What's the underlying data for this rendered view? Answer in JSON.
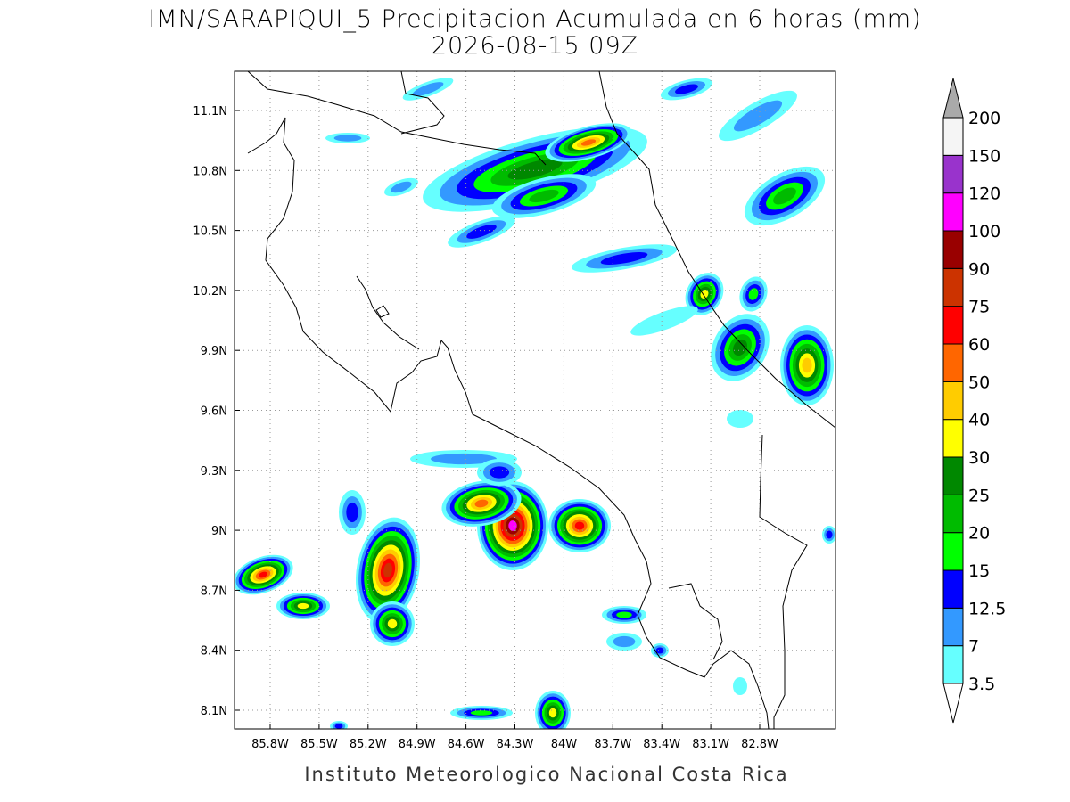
{
  "title": "IMN/SARAPIQUI_5 Precipitacion Acumulada en 6 horas (mm)",
  "subtitle": "2026-08-15 09Z",
  "lat_labels": [
    "11.1N",
    "10.8N",
    "10.5N",
    "10.2N",
    "9.9N",
    "9.6N",
    "9.3N",
    "9N",
    "8.7N",
    "8.4N",
    "8.1N"
  ],
  "lon_labels": [
    "85.8W",
    "85.5W",
    "85.2W",
    "84.9W",
    "84.6W",
    "84.3W",
    "84W",
    "83.7W",
    "83.4W",
    "83.1W",
    "82.8W"
  ],
  "colorbar": {
    "levels": [
      3.5,
      7,
      12.5,
      15,
      20,
      25,
      30,
      40,
      50,
      60,
      75,
      90,
      100,
      120,
      150,
      200
    ],
    "colors": [
      "#66ffff",
      "#3399ff",
      "#0000ff",
      "#00ff00",
      "#00bb00",
      "#008800",
      "#ffff00",
      "#ffcc00",
      "#ff6600",
      "#ff0000",
      "#cc3300",
      "#990000",
      "#ff00ff",
      "#9933cc",
      "#f5f5f5"
    ],
    "under_color": "#ffffff",
    "over_color": "#aaaaaa"
  },
  "footer": "Instituto Meteorologico Nacional Costa Rica"
}
